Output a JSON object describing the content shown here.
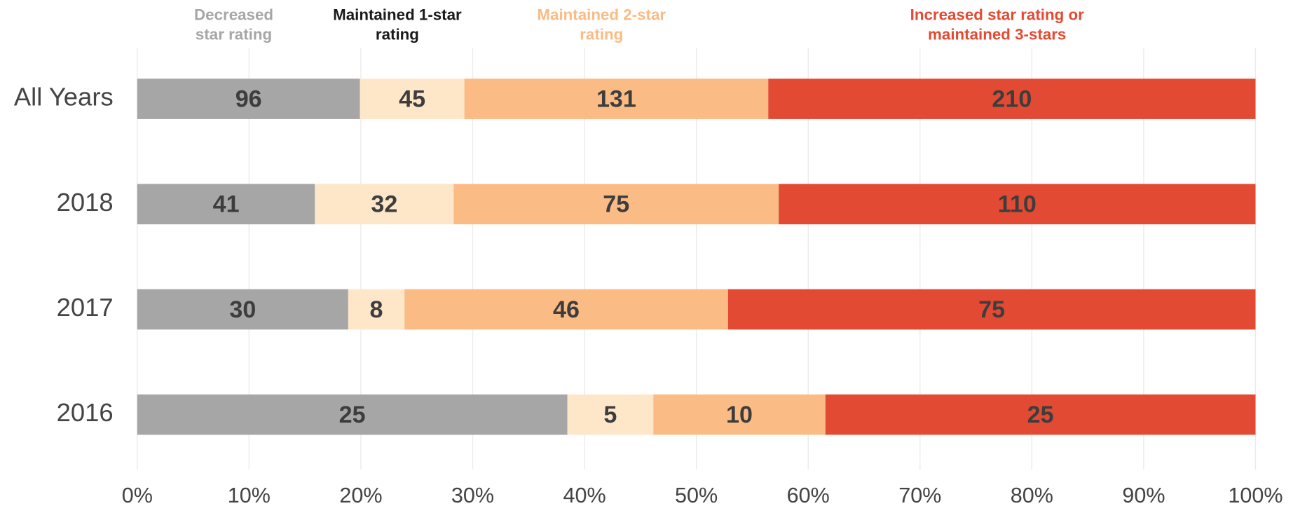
{
  "chart_data": {
    "type": "bar",
    "orientation": "horizontal",
    "stacking": "percent",
    "categories": [
      "All Years",
      "2018",
      "2017",
      "2016"
    ],
    "series": [
      {
        "name": "Decreased\nstar rating",
        "color": "#a6a6a6",
        "label_color": "#a6a6a6",
        "values": [
          96,
          41,
          30,
          25
        ]
      },
      {
        "name": "Maintained 1-star\nrating",
        "color": "#fee6c9",
        "label_color": "#1a1a1a",
        "values": [
          45,
          32,
          8,
          5
        ]
      },
      {
        "name": "Maintained 2-star\nrating",
        "color": "#fbbb85",
        "label_color": "#fbbb85",
        "values": [
          131,
          75,
          46,
          10
        ]
      },
      {
        "name": "Increased star rating or\nmaintained 3-stars",
        "color": "#e34a33",
        "label_color": "#e34a33",
        "values": [
          210,
          110,
          75,
          25
        ]
      }
    ],
    "xlim": [
      0,
      100
    ],
    "xticks": [
      {
        "value": 0,
        "label": "0%"
      },
      {
        "value": 10,
        "label": "10%"
      },
      {
        "value": 20,
        "label": "20%"
      },
      {
        "value": 30,
        "label": "30%"
      },
      {
        "value": 40,
        "label": "40%"
      },
      {
        "value": 50,
        "label": "50%"
      },
      {
        "value": 60,
        "label": "60%"
      },
      {
        "value": 70,
        "label": "70%"
      },
      {
        "value": 80,
        "label": "80%"
      },
      {
        "value": 90,
        "label": "90%"
      },
      {
        "value": 100,
        "label": "100%"
      }
    ],
    "grid": true
  }
}
